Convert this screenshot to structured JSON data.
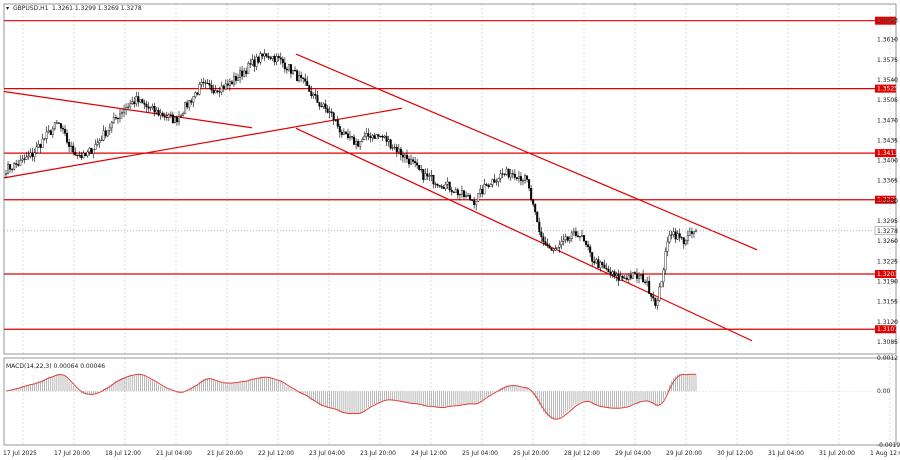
{
  "header": {
    "symbol_timeframe": "GBPUSD,H1",
    "ohlc": "1.3261 1.3299 1.3269 1.3278"
  },
  "macd": {
    "label": "MACD(14,22,3) 0.00064 0.00046"
  },
  "colors": {
    "candle": "#000000",
    "level_line": "#e00000",
    "trend_line": "#e00000",
    "signal_line": "#e04040",
    "histogram": "#999999",
    "grid": "#c8c8c8",
    "background": "#ffffff"
  },
  "chart_data": [
    {
      "type": "candlestick",
      "title": "GBPUSD,H1",
      "y_range": [
        1.3064,
        1.3672
      ],
      "y_ticks": [
        "1.3643",
        "1.3610",
        "1.3575",
        "1.3540",
        "1.3505",
        "1.3470",
        "1.3435",
        "1.3400",
        "1.3365",
        "1.3330",
        "1.3295",
        "1.3260",
        "1.3225",
        "1.3190",
        "1.3155",
        "1.3120",
        "1.3085"
      ],
      "x_ticks": [
        "17 Jul 2025",
        "17 Jul 20:00",
        "18 Jul 12:00",
        "21 Jul 04:00",
        "21 Jul 20:00",
        "22 Jul 12:00",
        "23 Jul 04:00",
        "23 Jul 20:00",
        "24 Jul 12:00",
        "25 Jul 04:00",
        "25 Jul 20:00",
        "28 Jul 12:00",
        "29 Jul 04:00",
        "29 Jul 20:00",
        "30 Jul 12:00",
        "31 Jul 04:00",
        "31 Jul 20:00",
        "1 Aug 12:00"
      ],
      "current_price": "1.3278",
      "horizontal_levels": [
        "1.3643",
        "1.3525",
        "1.3413",
        "1.3332",
        "1.3203",
        "1.3107"
      ],
      "close_path": [
        1.3385,
        1.3395,
        1.341,
        1.344,
        1.3465,
        1.342,
        1.3405,
        1.343,
        1.346,
        1.349,
        1.3505,
        1.349,
        1.348,
        1.347,
        1.35,
        1.353,
        1.3525,
        1.353,
        1.355,
        1.357,
        1.3585,
        1.3575,
        1.3555,
        1.353,
        1.35,
        1.348,
        1.344,
        1.343,
        1.3445,
        1.344,
        1.342,
        1.34,
        1.3375,
        1.3365,
        1.3355,
        1.334,
        1.333,
        1.336,
        1.3375,
        1.338,
        1.3365,
        1.327,
        1.324,
        1.326,
        1.3275,
        1.323,
        1.321,
        1.3195,
        1.32,
        1.3195,
        1.315,
        1.328,
        1.326,
        1.3278
      ]
    },
    {
      "type": "bar",
      "title": "MACD(14,22,3)",
      "values_text": "0.00064 0.00046",
      "y_range": [
        -0.00194,
        0.0012
      ],
      "y_ticks": [
        "0.0012",
        "0.00",
        "-0.00194"
      ]
    }
  ]
}
